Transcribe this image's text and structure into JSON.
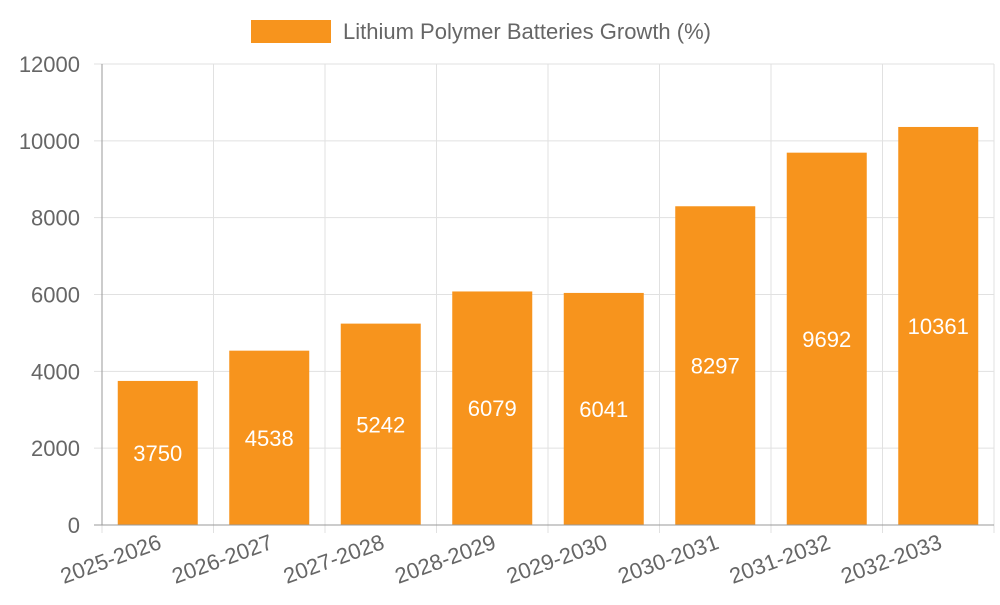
{
  "chart_data": {
    "type": "bar",
    "categories": [
      "2025-2026",
      "2026-2027",
      "2027-2028",
      "2028-2029",
      "2029-2030",
      "2030-2031",
      "2031-2032",
      "2032-2033"
    ],
    "series": [
      {
        "name": "Lithium Polymer Batteries Growth (%)",
        "values": [
          3750,
          4538,
          5242,
          6079,
          6041,
          8297,
          9692,
          10361
        ],
        "color": "#f7941d"
      }
    ],
    "ylim": [
      0,
      12000
    ],
    "yticks": [
      0,
      2000,
      4000,
      6000,
      8000,
      10000,
      12000
    ],
    "grid": true,
    "legend_position": "top-center",
    "data_labels": true
  }
}
